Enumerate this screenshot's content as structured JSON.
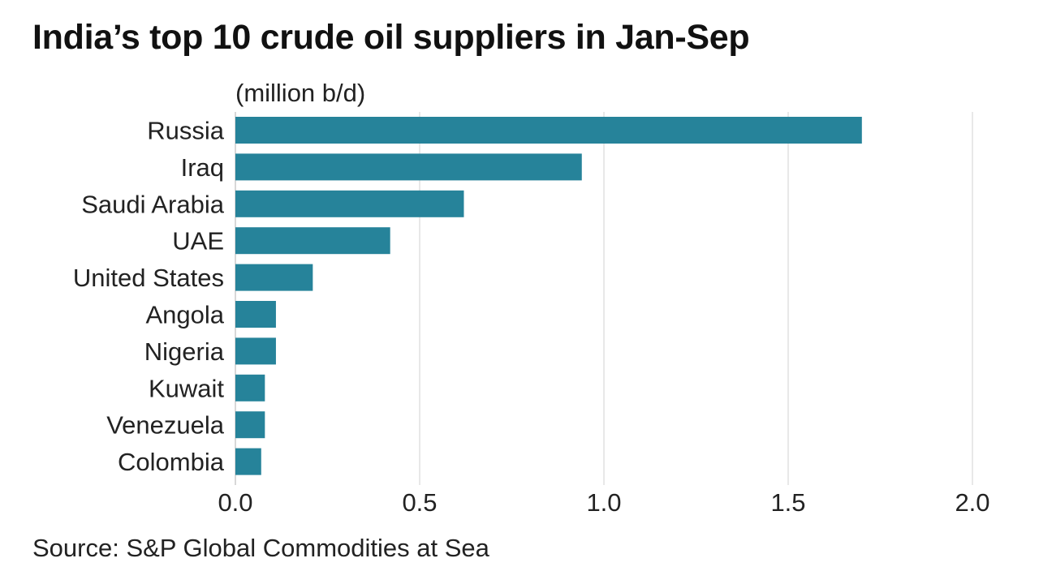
{
  "chart_data": {
    "type": "bar",
    "orientation": "horizontal",
    "title": "India’s top 10 crude oil suppliers in Jan-Sep",
    "unit_label": "(million b/d)",
    "categories": [
      "Russia",
      "Iraq",
      "Saudi Arabia",
      "UAE",
      "United States",
      "Angola",
      "Nigeria",
      "Kuwait",
      "Venezuela",
      "Colombia"
    ],
    "values": [
      1.7,
      0.94,
      0.62,
      0.42,
      0.21,
      0.11,
      0.11,
      0.08,
      0.08,
      0.07
    ],
    "xlim": [
      0,
      2.0
    ],
    "x_ticks": [
      "0.0",
      "0.5",
      "1.0",
      "1.5",
      "2.0"
    ],
    "x_tick_values": [
      0,
      0.5,
      1.0,
      1.5,
      2.0
    ],
    "grid": true,
    "bar_color": "#26839a",
    "source": "Source: S&P Global Commodities at Sea"
  }
}
